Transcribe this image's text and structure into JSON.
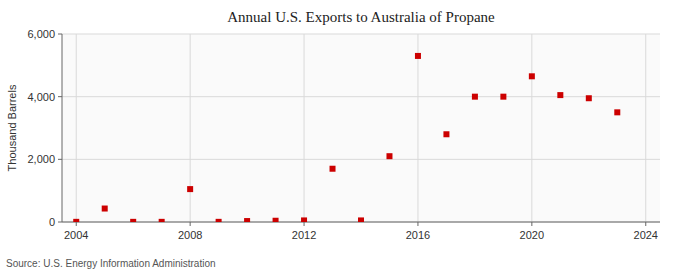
{
  "chart_data": {
    "type": "scatter",
    "title": "Annual U.S. Exports to Australia of Propane",
    "ylabel": "Thousand Barrels",
    "source": "Source: U.S. Energy Information Administration",
    "x": [
      2004,
      2005,
      2006,
      2007,
      2008,
      2009,
      2010,
      2011,
      2012,
      2013,
      2014,
      2015,
      2016,
      2017,
      2018,
      2019,
      2020,
      2021,
      2022,
      2023,
      2024
    ],
    "values": [
      5,
      430,
      5,
      5,
      1050,
      5,
      30,
      40,
      50,
      1700,
      50,
      2100,
      5300,
      2800,
      4000,
      4000,
      4650,
      4050,
      3950,
      3500,
      null
    ],
    "color": "#cc0000",
    "marker": "square",
    "xlim": [
      2003.5,
      2024.5
    ],
    "ylim": [
      0,
      6000
    ],
    "xticks": [
      2004,
      2008,
      2012,
      2016,
      2020,
      2024
    ],
    "yticks": [
      0,
      {
        "value": 2000,
        "label": "2,000"
      },
      {
        "value": 4000,
        "label": "4,000"
      },
      {
        "value": 6000,
        "label": "6,000"
      }
    ],
    "grid": true
  }
}
